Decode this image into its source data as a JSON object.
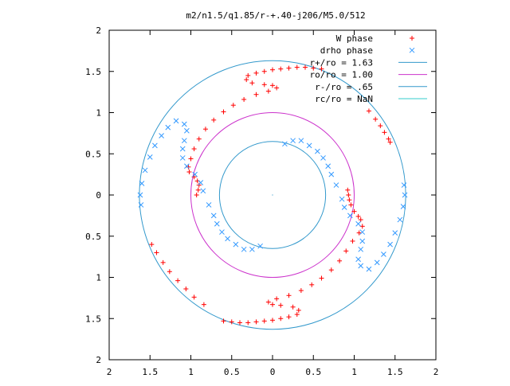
{
  "chart_data": {
    "type": "scatter",
    "title": "m2/n1.5/q1.85/r-+.40-j206/M5.0/512",
    "xlim": [
      -2,
      2
    ],
    "ylim": [
      -2,
      2
    ],
    "x_ticks": [
      -2,
      -1.5,
      -1,
      -0.5,
      0,
      0.5,
      1,
      1.5,
      2
    ],
    "y_ticks": [
      -2,
      -1.5,
      -1,
      -0.5,
      0,
      0.5,
      1,
      1.5,
      2
    ],
    "x_tick_labels": [
      "2",
      "1.5",
      "1",
      "0.5",
      "0",
      "0.5",
      "1",
      "1.5",
      "2"
    ],
    "y_tick_labels": [
      "2",
      "1.5",
      "1",
      "0.5",
      "0",
      "0.5",
      "1",
      "1.5",
      "2"
    ],
    "grid": false,
    "legend_position": "top-right",
    "series": [
      {
        "name": "W phase",
        "kind": "points",
        "marker": "plus",
        "color": "#ff0000",
        "points": [
          [
            0.6,
            1.53
          ],
          [
            0.5,
            1.54
          ],
          [
            0.4,
            1.55
          ],
          [
            0.3,
            1.55
          ],
          [
            0.2,
            1.54
          ],
          [
            0.1,
            1.53
          ],
          [
            0.0,
            1.52
          ],
          [
            -0.1,
            1.5
          ],
          [
            -0.2,
            1.48
          ],
          [
            -0.3,
            1.45
          ],
          [
            -0.32,
            1.4
          ],
          [
            -0.25,
            1.36
          ],
          [
            -0.1,
            1.34
          ],
          [
            0.0,
            1.33
          ],
          [
            0.05,
            1.3
          ],
          [
            -0.05,
            1.26
          ],
          [
            -0.2,
            1.22
          ],
          [
            -0.35,
            1.16
          ],
          [
            -0.48,
            1.09
          ],
          [
            -0.6,
            1.01
          ],
          [
            -0.72,
            0.91
          ],
          [
            -0.82,
            0.8
          ],
          [
            -0.9,
            0.68
          ],
          [
            -0.96,
            0.56
          ],
          [
            -1.0,
            0.44
          ],
          [
            -1.03,
            0.34
          ],
          [
            -1.02,
            0.28
          ],
          [
            -0.96,
            0.22
          ],
          [
            -0.92,
            0.17
          ],
          [
            -0.9,
            0.12
          ],
          [
            -0.91,
            0.06
          ],
          [
            -0.93,
            0.0
          ],
          [
            0.92,
            0.06
          ],
          [
            0.93,
            0.0
          ],
          [
            0.94,
            -0.06
          ],
          [
            0.96,
            -0.12
          ],
          [
            1.0,
            -0.2
          ],
          [
            1.05,
            -0.26
          ],
          [
            1.08,
            -0.3
          ],
          [
            1.1,
            -0.38
          ],
          [
            1.06,
            -0.46
          ],
          [
            0.98,
            -0.56
          ],
          [
            0.9,
            -0.68
          ],
          [
            0.82,
            -0.8
          ],
          [
            0.72,
            -0.91
          ],
          [
            0.6,
            -1.01
          ],
          [
            0.48,
            -1.09
          ],
          [
            0.35,
            -1.16
          ],
          [
            0.2,
            -1.22
          ],
          [
            0.05,
            -1.26
          ],
          [
            -0.05,
            -1.3
          ],
          [
            0.0,
            -1.33
          ],
          [
            0.1,
            -1.34
          ],
          [
            0.25,
            -1.36
          ],
          [
            0.32,
            -1.4
          ],
          [
            0.3,
            -1.45
          ],
          [
            0.2,
            -1.48
          ],
          [
            0.1,
            -1.5
          ],
          [
            0.0,
            -1.52
          ],
          [
            -0.1,
            -1.53
          ],
          [
            -0.2,
            -1.54
          ],
          [
            -0.3,
            -1.55
          ],
          [
            -0.4,
            -1.55
          ],
          [
            -0.5,
            -1.54
          ],
          [
            -0.6,
            -1.53
          ],
          [
            1.18,
            1.02
          ],
          [
            1.26,
            0.92
          ],
          [
            1.32,
            0.84
          ],
          [
            1.37,
            0.76
          ],
          [
            1.42,
            0.68
          ],
          [
            1.44,
            0.64
          ],
          [
            -0.84,
            -1.33
          ],
          [
            -0.96,
            -1.24
          ],
          [
            -1.06,
            -1.14
          ],
          [
            -1.16,
            -1.04
          ],
          [
            -1.26,
            -0.93
          ],
          [
            -1.34,
            -0.82
          ],
          [
            -1.42,
            -0.7
          ],
          [
            -1.48,
            -0.6
          ]
        ]
      },
      {
        "name": "drho phase",
        "kind": "points",
        "marker": "cross",
        "color": "#3399ff",
        "points": [
          [
            0.15,
            0.62
          ],
          [
            0.25,
            0.66
          ],
          [
            0.35,
            0.66
          ],
          [
            0.45,
            0.6
          ],
          [
            0.55,
            0.53
          ],
          [
            0.62,
            0.45
          ],
          [
            0.68,
            0.35
          ],
          [
            0.72,
            0.25
          ],
          [
            0.78,
            0.12
          ],
          [
            0.85,
            -0.05
          ],
          [
            0.88,
            -0.15
          ],
          [
            0.95,
            -0.25
          ],
          [
            1.05,
            -0.35
          ],
          [
            1.1,
            -0.45
          ],
          [
            1.1,
            -0.56
          ],
          [
            1.08,
            -0.66
          ],
          [
            1.05,
            -0.78
          ],
          [
            1.08,
            -0.86
          ],
          [
            1.18,
            -0.9
          ],
          [
            1.28,
            -0.82
          ],
          [
            1.36,
            -0.72
          ],
          [
            1.44,
            -0.6
          ],
          [
            1.5,
            -0.46
          ],
          [
            1.56,
            -0.3
          ],
          [
            1.6,
            -0.14
          ],
          [
            1.62,
            0.0
          ],
          [
            1.61,
            0.12
          ],
          [
            -0.15,
            -0.62
          ],
          [
            -0.25,
            -0.66
          ],
          [
            -0.35,
            -0.66
          ],
          [
            -0.45,
            -0.6
          ],
          [
            -0.55,
            -0.53
          ],
          [
            -0.62,
            -0.45
          ],
          [
            -0.68,
            -0.35
          ],
          [
            -0.72,
            -0.25
          ],
          [
            -0.78,
            -0.12
          ],
          [
            -0.85,
            0.05
          ],
          [
            -0.88,
            0.15
          ],
          [
            -0.95,
            0.25
          ],
          [
            -1.05,
            0.35
          ],
          [
            -1.1,
            0.45
          ],
          [
            -1.1,
            0.56
          ],
          [
            -1.08,
            0.66
          ],
          [
            -1.05,
            0.78
          ],
          [
            -1.08,
            0.86
          ],
          [
            -1.18,
            0.9
          ],
          [
            -1.28,
            0.82
          ],
          [
            -1.36,
            0.72
          ],
          [
            -1.44,
            0.6
          ],
          [
            -1.5,
            0.46
          ],
          [
            -1.56,
            0.3
          ],
          [
            -1.6,
            0.14
          ],
          [
            -1.62,
            0.0
          ],
          [
            -1.61,
            -0.12
          ]
        ]
      },
      {
        "name": "r+/ro = 1.63",
        "kind": "circle",
        "r": 1.63,
        "color": "#3399cc"
      },
      {
        "name": "ro/ro = 1.00",
        "kind": "circle",
        "r": 1.0,
        "color": "#cc33cc"
      },
      {
        "name": "r-/ro = .65",
        "kind": "circle",
        "r": 0.65,
        "color": "#3399cc"
      },
      {
        "name": "rc/ro = NaN",
        "kind": "circle",
        "r": null,
        "color": "#33cccc"
      }
    ]
  }
}
